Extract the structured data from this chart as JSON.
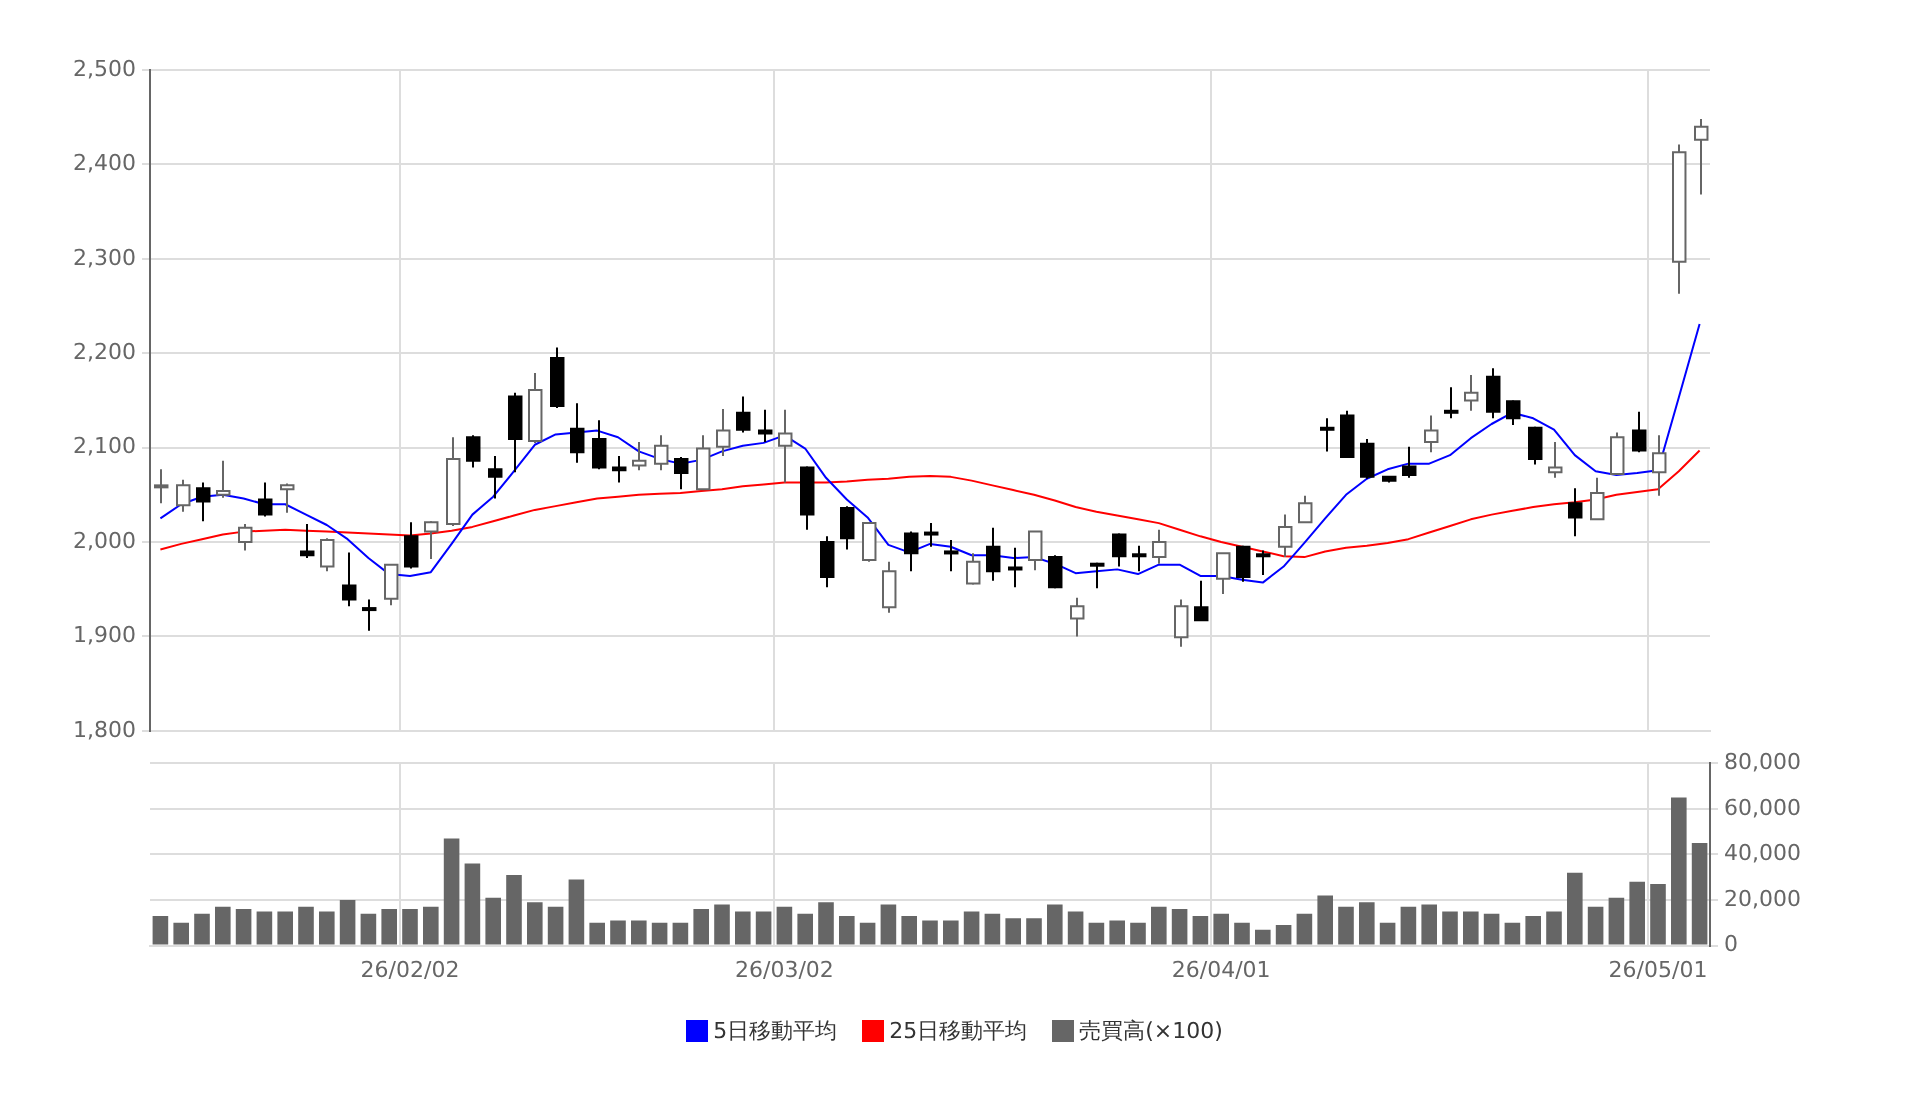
{
  "chart_data": [
    {
      "type": "candlestick",
      "categories": [
        null,
        null,
        null,
        null,
        null,
        null,
        null,
        null,
        null,
        null,
        null,
        null,
        null,
        null,
        null,
        null,
        null,
        null,
        null,
        null,
        null,
        null,
        null,
        null,
        null,
        null,
        null,
        null,
        null,
        null,
        null,
        null,
        null,
        null,
        null,
        null,
        null,
        null,
        null,
        null,
        null,
        null,
        null,
        null,
        null,
        null,
        null,
        null,
        null,
        null,
        null,
        null,
        null,
        null,
        null,
        null,
        null,
        null,
        null,
        null,
        null,
        null,
        null,
        null,
        null,
        null,
        null,
        null,
        null,
        null,
        null,
        null,
        null,
        null,
        null
      ],
      "ohlc": [
        [
          2060,
          2077,
          2041,
          2060
        ],
        [
          2039,
          2066,
          2032,
          2060
        ],
        [
          2057,
          2063,
          2022,
          2043
        ],
        [
          2050,
          2086,
          2047,
          2054
        ],
        [
          2000,
          2019,
          1991,
          2015
        ],
        [
          2045,
          2063,
          2027,
          2029
        ],
        [
          2056,
          2062,
          2031,
          2060
        ],
        [
          1990,
          2019,
          1983,
          1986
        ],
        [
          1974,
          2004,
          1969,
          2002
        ],
        [
          1954,
          1989,
          1932,
          1939
        ],
        [
          1930,
          1939,
          1906,
          1929
        ],
        [
          1940,
          1976,
          1933,
          1976
        ],
        [
          2006,
          2021,
          1972,
          1974
        ],
        [
          2011,
          2022,
          1982,
          2021
        ],
        [
          2019,
          2111,
          2017,
          2088
        ],
        [
          2111,
          2113,
          2079,
          2086
        ],
        [
          2077,
          2091,
          2046,
          2069
        ],
        [
          2154,
          2158,
          2074,
          2109
        ],
        [
          2107,
          2179,
          2105,
          2161
        ],
        [
          2195,
          2206,
          2142,
          2144
        ],
        [
          2120,
          2147,
          2084,
          2095
        ],
        [
          2109,
          2129,
          2077,
          2079
        ],
        [
          2079,
          2091,
          2063,
          2076
        ],
        [
          2081,
          2106,
          2076,
          2086
        ],
        [
          2083,
          2113,
          2076,
          2102
        ],
        [
          2088,
          2090,
          2056,
          2073
        ],
        [
          2056,
          2113,
          2056,
          2099
        ],
        [
          2101,
          2141,
          2091,
          2118
        ],
        [
          2137,
          2154,
          2116,
          2119
        ],
        [
          2118,
          2140,
          2106,
          2115
        ],
        [
          2102,
          2140,
          2063,
          2115
        ],
        [
          2079,
          2080,
          2013,
          2029
        ],
        [
          2000,
          2006,
          1952,
          1963
        ],
        [
          2036,
          2038,
          1992,
          2004
        ],
        [
          1981,
          2021,
          1979,
          2020
        ],
        [
          1931,
          1979,
          1925,
          1969
        ],
        [
          2009,
          2011,
          1969,
          1988
        ],
        [
          2010,
          2020,
          1995,
          2008
        ],
        [
          1990,
          2002,
          1969,
          1988
        ],
        [
          1956,
          1988,
          1955,
          1979
        ],
        [
          1995,
          2015,
          1959,
          1969
        ],
        [
          1973,
          1994,
          1952,
          1972
        ],
        [
          1981,
          2011,
          1970,
          2011
        ],
        [
          1984,
          1986,
          1951,
          1952
        ],
        [
          1919,
          1941,
          1900,
          1932
        ],
        [
          1977,
          1978,
          1951,
          1976
        ],
        [
          2008,
          2009,
          1974,
          1985
        ],
        [
          1987,
          1996,
          1969,
          1985
        ],
        [
          1984,
          2013,
          1977,
          2000
        ],
        [
          1899,
          1939,
          1889,
          1932
        ],
        [
          1931,
          1959,
          1917,
          1917
        ],
        [
          1961,
          1988,
          1945,
          1988
        ],
        [
          1995,
          1996,
          1958,
          1963
        ],
        [
          1987,
          1991,
          1965,
          1986
        ],
        [
          1995,
          2029,
          1984,
          2016
        ],
        [
          2021,
          2049,
          2020,
          2041
        ],
        [
          2121,
          2131,
          2096,
          2119
        ],
        [
          2134,
          2139,
          2090,
          2090
        ],
        [
          2104,
          2109,
          2067,
          2069
        ],
        [
          2069,
          2070,
          2063,
          2065
        ],
        [
          2080,
          2101,
          2068,
          2071
        ],
        [
          2106,
          2134,
          2095,
          2118
        ],
        [
          2139,
          2164,
          2131,
          2138
        ],
        [
          2150,
          2177,
          2139,
          2158
        ],
        [
          2175,
          2184,
          2131,
          2138
        ],
        [
          2149,
          2150,
          2124,
          2131
        ],
        [
          2121,
          2122,
          2082,
          2088
        ],
        [
          2074,
          2106,
          2068,
          2079
        ],
        [
          2041,
          2057,
          2006,
          2026
        ],
        [
          2024,
          2068,
          2024,
          2052
        ],
        [
          2072,
          2116,
          2072,
          2111
        ],
        [
          2118,
          2138,
          2095,
          2097
        ],
        [
          2074,
          2113,
          2049,
          2094
        ],
        [
          2297,
          2421,
          2263,
          2413
        ],
        [
          2426,
          2448,
          2368,
          2440
        ]
      ],
      "colors": [
        "#ffffff",
        "#ffffff",
        "#000000",
        "#ffffff",
        "#ffffff",
        "#000000",
        "#ffffff",
        "#000000",
        "#ffffff",
        "#000000",
        "#000000",
        "#ffffff",
        "#000000",
        "#ffffff",
        "#ffffff",
        "#000000",
        "#000000",
        "#000000",
        "#ffffff",
        "#000000",
        "#000000",
        "#000000",
        "#000000",
        "#ffffff",
        "#ffffff",
        "#000000",
        "#ffffff",
        "#ffffff",
        "#000000",
        "#000000",
        "#ffffff",
        "#000000",
        "#000000",
        "#000000",
        "#ffffff",
        "#ffffff",
        "#000000",
        "#000000",
        "#000000",
        "#ffffff",
        "#000000",
        "#000000",
        "#ffffff",
        "#000000",
        "#ffffff",
        "#000000",
        "#000000",
        "#000000",
        "#ffffff",
        "#ffffff",
        "#000000",
        "#ffffff",
        "#000000",
        "#000000",
        "#ffffff",
        "#ffffff",
        "#000000",
        "#000000",
        "#000000",
        "#000000",
        "#000000",
        "#ffffff",
        "#000000",
        "#ffffff",
        "#000000",
        "#000000",
        "#000000",
        "#ffffff",
        "#000000",
        "#ffffff",
        "#ffffff",
        "#000000",
        "#ffffff",
        "#ffffff",
        "#ffffff"
      ],
      "series": [
        {
          "type": "line",
          "name": "5日移動平均",
          "color": "#0000ff",
          "values": [
            2025,
            2040,
            2048,
            2050,
            2046,
            2040,
            2040,
            2029,
            2018,
            2003,
            1983,
            1966,
            1964,
            1968,
            1998,
            2029,
            2048,
            2075,
            2103,
            2114,
            2116,
            2118,
            2111,
            2096,
            2088,
            2083,
            2087,
            2096,
            2102,
            2105,
            2113,
            2099,
            2068,
            2045,
            2026,
            1997,
            1989,
            1998,
            1995,
            1986,
            1986,
            1983,
            1984,
            1977,
            1967,
            1969,
            1971,
            1966,
            1976,
            1976,
            1964,
            1964,
            1960,
            1957,
            1974,
            1999,
            2025,
            2050,
            2067,
            2077,
            2083,
            2083,
            2092,
            2110,
            2125,
            2137,
            2131,
            2119,
            2092,
            2075,
            2071,
            2073,
            2076,
            2153,
            2231
          ]
        },
        {
          "type": "line",
          "name": "25日移動平均",
          "color": "#ff0000",
          "values": [
            1992,
            1998,
            2003,
            2008,
            2011,
            2012,
            2013,
            2012,
            2011,
            2010,
            2009,
            2008,
            2007,
            2009,
            2012,
            2016,
            2022,
            2028,
            2034,
            2038,
            2042,
            2046,
            2048,
            2050,
            2051,
            2052,
            2054,
            2056,
            2059,
            2061,
            2063,
            2063,
            2063,
            2064,
            2066,
            2067,
            2069,
            2070,
            2069,
            2065,
            2060,
            2055,
            2050,
            2044,
            2037,
            2032,
            2028,
            2024,
            2020,
            2013,
            2006,
            2000,
            1995,
            1990,
            1985,
            1984,
            1990,
            1994,
            1996,
            1999,
            2003,
            2010,
            2017,
            2024,
            2029,
            2033,
            2037,
            2040,
            2042,
            2045,
            2050,
            2053,
            2056,
            2075,
            2097
          ]
        }
      ],
      "ylim": [
        1800,
        2500
      ],
      "yticks": [
        {
          "value": 1800,
          "label": "1,800"
        },
        {
          "value": 1900,
          "label": "1,900"
        },
        {
          "value": 2000,
          "label": "2,000"
        },
        {
          "value": 2100,
          "label": "2,100"
        },
        {
          "value": 2200,
          "label": "2,200"
        },
        {
          "value": 2300,
          "label": "2,300"
        },
        {
          "value": 2400,
          "label": "2,400"
        },
        {
          "value": 2500,
          "label": "2,500"
        }
      ],
      "tick_labels": "y",
      "grid": true,
      "legend": "bottom",
      "marker": "none"
    },
    {
      "type": "bar",
      "categories": [
        null,
        null,
        null,
        null,
        null,
        null,
        null,
        null,
        null,
        null,
        null,
        null,
        "26/02/02",
        null,
        null,
        null,
        null,
        null,
        null,
        null,
        null,
        null,
        null,
        null,
        null,
        null,
        null,
        null,
        null,
        null,
        "26/03/02",
        null,
        null,
        null,
        null,
        null,
        null,
        null,
        null,
        null,
        null,
        null,
        null,
        null,
        null,
        null,
        null,
        null,
        null,
        null,
        null,
        "26/04/01",
        null,
        null,
        null,
        null,
        null,
        null,
        null,
        null,
        null,
        null,
        null,
        null,
        null,
        null,
        null,
        null,
        null,
        null,
        null,
        null,
        "26/05/01",
        null,
        null
      ],
      "series": [
        {
          "name": "売買高(×100)",
          "color": "#666666",
          "axis": "y2",
          "values": [
            13000,
            10000,
            14000,
            17000,
            16000,
            15000,
            15000,
            17000,
            15000,
            20000,
            14000,
            16000,
            16000,
            17000,
            47000,
            36000,
            21000,
            31000,
            19000,
            17000,
            29000,
            10000,
            11000,
            11000,
            10000,
            10000,
            16000,
            18000,
            15000,
            15000,
            17000,
            14000,
            19000,
            13000,
            10000,
            18000,
            13000,
            11000,
            11000,
            15000,
            14000,
            12000,
            12000,
            18000,
            15000,
            10000,
            11000,
            10000,
            17000,
            16000,
            13000,
            14000,
            10000,
            7000,
            9000,
            14000,
            22000,
            17000,
            19000,
            10000,
            17000,
            18000,
            15000,
            15000,
            14000,
            10000,
            13000,
            15000,
            32000,
            17000,
            21000,
            28000,
            27000,
            65000,
            45000
          ]
        }
      ],
      "y2lim": [
        0,
        80000
      ],
      "y2ticks": [
        0,
        {
          "value": 20000,
          "label": "20,000"
        },
        {
          "value": 40000,
          "label": "40,000"
        },
        {
          "value": 60000,
          "label": "60,000"
        },
        {
          "value": 80000,
          "label": "80,000"
        }
      ],
      "grid": true,
      "legend": "bottom"
    }
  ]
}
